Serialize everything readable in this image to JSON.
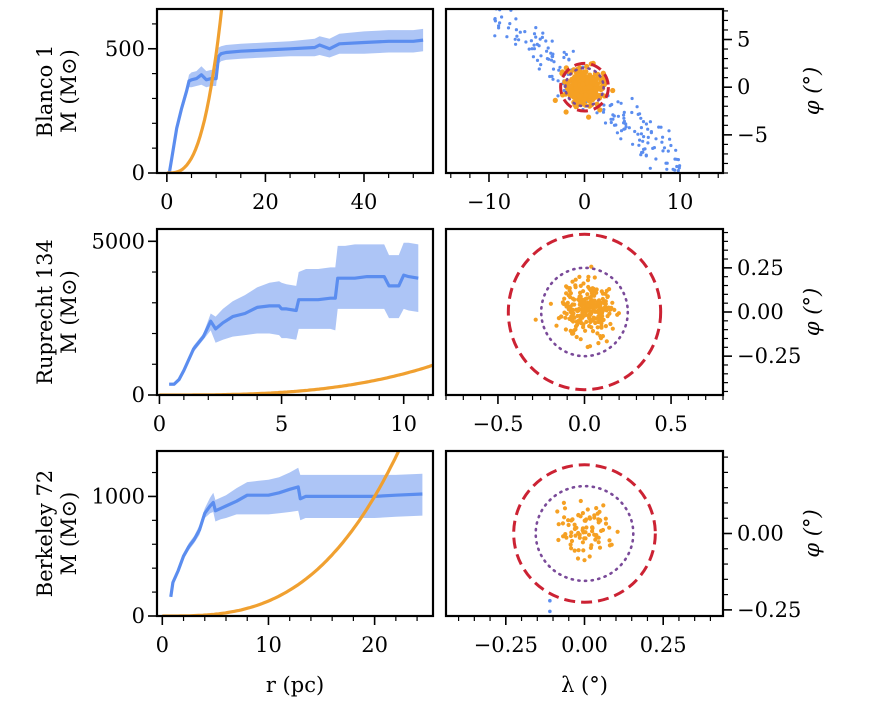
{
  "colors": {
    "profile_line": "#5b8def",
    "profile_band": "#a9c2f6",
    "model_curve": "#f0a030",
    "member_points": "#f5a023",
    "field_points": "#5b8def",
    "outer_circle": "#cc2233",
    "inner_circle": "#7a4a99"
  },
  "chart_data": [
    {
      "type": "line",
      "panel": "Blanco 1 mass profile",
      "ylabel_lines": [
        "Blanco 1",
        "M (M⊙)"
      ],
      "xlabel": "",
      "xlim": [
        -2,
        54
      ],
      "ylim": [
        0,
        660
      ],
      "xticks": [
        0,
        20,
        40
      ],
      "xtick_labels": [
        "0",
        "20",
        "40"
      ],
      "yticks": [
        0,
        500
      ],
      "ytick_labels": [
        "0",
        "500"
      ],
      "x_minor_step": 5,
      "y_minor_step": 100,
      "series": [
        {
          "name": "enclosed mass",
          "x": [
            0.5,
            1,
            2,
            3,
            4,
            4.5,
            5,
            6,
            7,
            8,
            9,
            10,
            10.5,
            11,
            12,
            15,
            20,
            25,
            30,
            31,
            33,
            35,
            40,
            45,
            50,
            52
          ],
          "y": [
            0,
            60,
            180,
            260,
            330,
            370,
            375,
            380,
            395,
            375,
            380,
            380,
            470,
            480,
            485,
            490,
            495,
            500,
            505,
            515,
            500,
            520,
            525,
            530,
            530,
            535
          ],
          "lower": [
            0,
            50,
            165,
            240,
            310,
            345,
            345,
            350,
            355,
            345,
            350,
            350,
            440,
            450,
            455,
            460,
            465,
            470,
            470,
            475,
            465,
            480,
            480,
            485,
            485,
            490
          ],
          "upper": [
            0,
            70,
            195,
            280,
            350,
            395,
            405,
            410,
            430,
            410,
            415,
            415,
            505,
            510,
            515,
            520,
            525,
            530,
            540,
            550,
            540,
            560,
            570,
            575,
            575,
            580
          ]
        },
        {
          "name": "model",
          "function": "cubic",
          "coefficient": 0.48,
          "x_start": 0
        }
      ]
    },
    {
      "type": "scatter",
      "panel": "Blanco 1 sky",
      "ylabel": "φ (°)",
      "xlabel": "",
      "xlim": [
        -14.5,
        14.5
      ],
      "ylim": [
        -9,
        8.2
      ],
      "xticks": [
        -10,
        0,
        10
      ],
      "xtick_labels": [
        "−10",
        "0",
        "10"
      ],
      "yticks": [
        -5,
        0,
        5
      ],
      "ytick_labels": [
        "−5",
        "0",
        "5"
      ],
      "x_minor_step": 2,
      "y_minor_step": 1,
      "circles": [
        {
          "name": "outer",
          "r": 2.5,
          "style": "dashed"
        },
        {
          "name": "inner",
          "r": 2.0,
          "style": "dotted"
        }
      ],
      "field_points": {
        "count": 190,
        "trend_slope": -0.8,
        "x_range": [
          -9.5,
          10
        ],
        "spread": 1.3
      },
      "member_points": {
        "count": 320,
        "sigma": 0.9
      }
    },
    {
      "type": "line",
      "panel": "Ruprecht 134 mass profile",
      "ylabel_lines": [
        "Ruprecht 134",
        "M (M⊙)"
      ],
      "xlabel": "",
      "xlim": [
        -0.1,
        11.2
      ],
      "ylim": [
        0,
        5400
      ],
      "xticks": [
        0,
        5,
        10
      ],
      "xtick_labels": [
        "0",
        "5",
        "10"
      ],
      "yticks": [
        0,
        5000
      ],
      "ytick_labels": [
        "0",
        "5000"
      ],
      "x_minor_step": 1,
      "y_minor_step": 1000,
      "series": [
        {
          "name": "enclosed mass",
          "x": [
            0.4,
            0.6,
            0.8,
            1.0,
            1.4,
            1.8,
            2.1,
            2.3,
            2.6,
            3,
            3.5,
            4,
            4.5,
            4.9,
            5.0,
            5.2,
            5.6,
            5.7,
            6,
            6.5,
            7,
            7.2,
            7.3,
            7.6,
            8,
            8.5,
            9,
            9.2,
            9.4,
            9.8,
            10,
            10.2,
            10.6
          ],
          "y": [
            350,
            350,
            500,
            800,
            1500,
            1900,
            2400,
            2150,
            2350,
            2550,
            2650,
            2850,
            2900,
            2900,
            2800,
            2800,
            2750,
            3100,
            3100,
            3100,
            3150,
            3150,
            3800,
            3800,
            3800,
            3850,
            3850,
            3850,
            3550,
            3550,
            3900,
            3850,
            3800
          ],
          "lower": [
            300,
            300,
            450,
            750,
            1400,
            1800,
            2100,
            1700,
            1800,
            1900,
            1950,
            2000,
            2000,
            1950,
            1850,
            1850,
            1800,
            2150,
            2150,
            2150,
            2150,
            2100,
            2800,
            2800,
            2800,
            2800,
            2800,
            2800,
            2500,
            2500,
            2800,
            2750,
            2700
          ],
          "upper": [
            400,
            400,
            550,
            850,
            1600,
            2000,
            2650,
            2550,
            2800,
            3050,
            3250,
            3500,
            3650,
            3700,
            3650,
            3600,
            3550,
            4000,
            4100,
            4100,
            4150,
            4150,
            4850,
            4850,
            4900,
            4900,
            4900,
            4900,
            4550,
            4550,
            4950,
            4950,
            4900
          ]
        },
        {
          "name": "model",
          "function": "cubic",
          "coefficient": 0.69,
          "x_start": 0
        }
      ]
    },
    {
      "type": "scatter",
      "panel": "Ruprecht 134 sky",
      "ylabel": "φ (°)",
      "xlabel": "",
      "xlim": [
        -0.8,
        0.8
      ],
      "ylim": [
        -0.47,
        0.47
      ],
      "xticks": [
        -0.5,
        0.0,
        0.5
      ],
      "xtick_labels": [
        "−0.5",
        "0.0",
        "0.5"
      ],
      "yticks": [
        -0.25,
        0.0,
        0.25
      ],
      "ytick_labels": [
        "−0.25",
        "0.00",
        "0.25"
      ],
      "x_minor_step": 0.1,
      "y_minor_step": 0.05,
      "circles": [
        {
          "name": "outer",
          "r": 0.44,
          "style": "dashed"
        },
        {
          "name": "inner",
          "r": 0.25,
          "style": "dotted"
        }
      ],
      "member_points": {
        "count": 260,
        "sigma": 0.075,
        "center": [
          0.02,
          0.02
        ]
      }
    },
    {
      "type": "line",
      "panel": "Berkeley 72 mass profile",
      "ylabel_lines": [
        "Berkeley 72",
        "M (M⊙)"
      ],
      "xlabel": "r (pc)",
      "xlim": [
        -0.5,
        25.5
      ],
      "ylim": [
        0,
        1380
      ],
      "xticks": [
        0,
        10,
        20
      ],
      "xtick_labels": [
        "0",
        "10",
        "20"
      ],
      "yticks": [
        0,
        1000
      ],
      "ytick_labels": [
        "0",
        "1000"
      ],
      "x_minor_step": 2,
      "y_minor_step": 200,
      "series": [
        {
          "name": "enclosed mass",
          "x": [
            0.8,
            1,
            1.5,
            2,
            2.5,
            3,
            3.5,
            4,
            4.5,
            4.8,
            5.0,
            5.5,
            6,
            7,
            8,
            9,
            10,
            11,
            12,
            12.8,
            13,
            13.5,
            15,
            18,
            20,
            22,
            24.5
          ],
          "y": [
            160,
            280,
            380,
            500,
            580,
            640,
            720,
            860,
            920,
            950,
            880,
            900,
            920,
            960,
            1010,
            1010,
            1010,
            1030,
            1060,
            1080,
            980,
            1000,
            1000,
            1000,
            1000,
            1010,
            1020
          ],
          "lower": [
            150,
            265,
            360,
            475,
            550,
            610,
            680,
            820,
            860,
            870,
            790,
            810,
            820,
            850,
            850,
            850,
            850,
            860,
            870,
            880,
            800,
            820,
            820,
            820,
            820,
            830,
            840
          ],
          "upper": [
            170,
            295,
            400,
            525,
            610,
            670,
            760,
            900,
            990,
            1030,
            970,
            990,
            1010,
            1070,
            1120,
            1130,
            1140,
            1160,
            1200,
            1240,
            1180,
            1180,
            1180,
            1180,
            1180,
            1180,
            1190
          ]
        },
        {
          "name": "model",
          "function": "cubic",
          "coefficient": 0.125,
          "x_start": 0
        }
      ]
    },
    {
      "type": "scatter",
      "panel": "Berkeley 72 sky",
      "ylabel": "φ (°)",
      "xlabel": "λ (°)",
      "xlim": [
        -0.44,
        0.44
      ],
      "ylim": [
        -0.27,
        0.27
      ],
      "xticks": [
        -0.25,
        0.0,
        0.25
      ],
      "xtick_labels": [
        "−0.25",
        "0.00",
        "0.25"
      ],
      "yticks": [
        -0.25,
        0.0
      ],
      "ytick_labels": [
        "−0.25",
        "0.00"
      ],
      "x_minor_step": 0.05,
      "y_minor_step": 0.05,
      "circles": [
        {
          "name": "outer",
          "r": 0.225,
          "style": "dashed"
        },
        {
          "name": "inner",
          "r": 0.155,
          "style": "dotted"
        }
      ],
      "member_points": {
        "count": 85,
        "sigma": 0.045,
        "center": [
          0.0,
          0.0
        ]
      },
      "field_points_list": [
        [
          -0.11,
          -0.22
        ],
        [
          -0.11,
          -0.255
        ]
      ]
    }
  ]
}
